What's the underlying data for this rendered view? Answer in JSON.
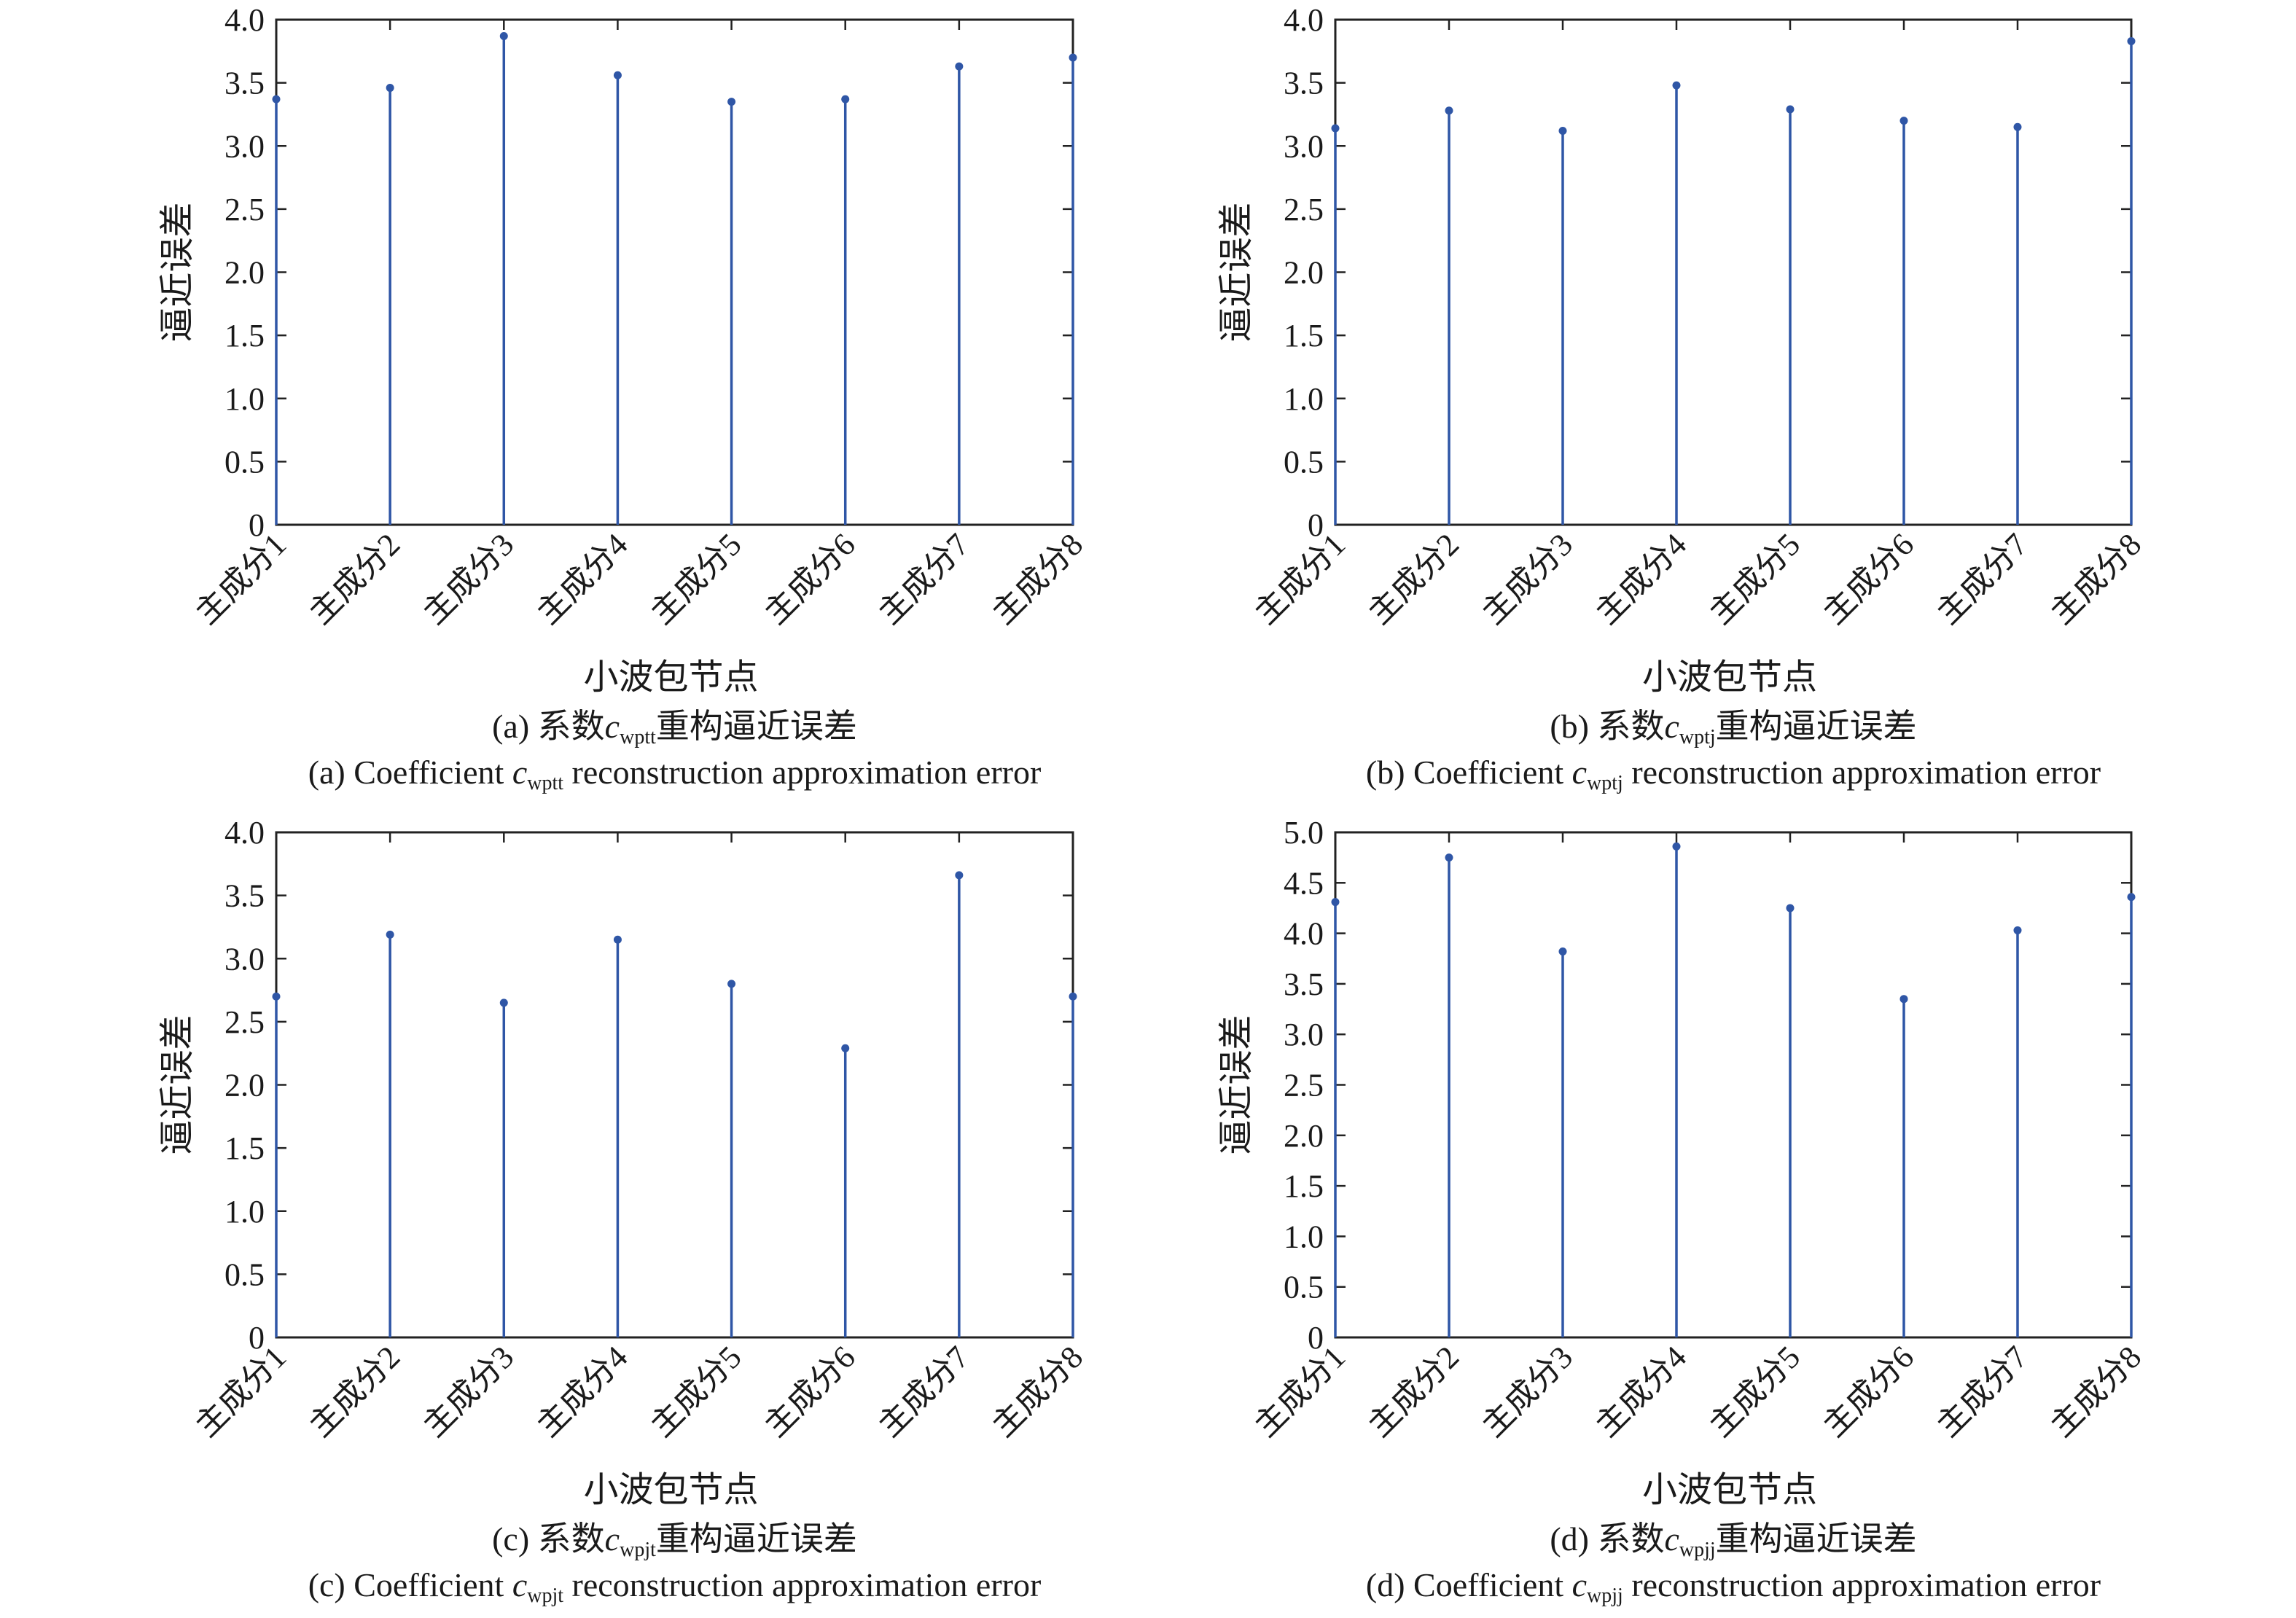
{
  "chart_data": [
    {
      "type": "stem",
      "categories": [
        "主成分1",
        "主成分2",
        "主成分3",
        "主成分4",
        "主成分5",
        "主成分6",
        "主成分7",
        "主成分8"
      ],
      "values": [
        3.37,
        3.46,
        3.87,
        3.56,
        3.35,
        3.37,
        3.63,
        3.7
      ],
      "ylim": [
        0,
        4
      ],
      "yticks": [
        "0",
        "0.5",
        "1.0",
        "1.5",
        "2.0",
        "2.5",
        "3.0",
        "3.5",
        "4.0"
      ],
      "ylabel": "逼近误差",
      "xlabel": "小波包节点",
      "caption_zh": {
        "prefix": "(a) 系数",
        "symbol": "c",
        "subscript": "wptt",
        "suffix": "重构逼近误差"
      },
      "caption_en": {
        "prefix": "(a) Coefficient ",
        "symbol": "c",
        "subscript": "wptt",
        "suffix": " reconstruction approximation error"
      },
      "color": "#2f56a6"
    },
    {
      "type": "stem",
      "categories": [
        "主成分1",
        "主成分2",
        "主成分3",
        "主成分4",
        "主成分5",
        "主成分6",
        "主成分7",
        "主成分8"
      ],
      "values": [
        3.14,
        3.28,
        3.12,
        3.48,
        3.29,
        3.2,
        3.15,
        3.83
      ],
      "ylim": [
        0,
        4
      ],
      "yticks": [
        "0",
        "0.5",
        "1.0",
        "1.5",
        "2.0",
        "2.5",
        "3.0",
        "3.5",
        "4.0"
      ],
      "ylabel": "逼近误差",
      "xlabel": "小波包节点",
      "caption_zh": {
        "prefix": "(b) 系数",
        "symbol": "c",
        "subscript": "wptj",
        "suffix": "重构逼近误差"
      },
      "caption_en": {
        "prefix": "(b) Coefficient ",
        "symbol": "c",
        "subscript": "wptj",
        "suffix": " reconstruction approximation error"
      },
      "color": "#2f56a6"
    },
    {
      "type": "stem",
      "categories": [
        "主成分1",
        "主成分2",
        "主成分3",
        "主成分4",
        "主成分5",
        "主成分6",
        "主成分7",
        "主成分8"
      ],
      "values": [
        2.7,
        3.19,
        2.65,
        3.15,
        2.8,
        2.29,
        3.66,
        2.7
      ],
      "ylim": [
        0,
        4
      ],
      "yticks": [
        "0",
        "0.5",
        "1.0",
        "1.5",
        "2.0",
        "2.5",
        "3.0",
        "3.5",
        "4.0"
      ],
      "ylabel": "逼近误差",
      "xlabel": "小波包节点",
      "caption_zh": {
        "prefix": "(c) 系数",
        "symbol": "c",
        "subscript": "wpjt",
        "suffix": "重构逼近误差"
      },
      "caption_en": {
        "prefix": "(c) Coefficient ",
        "symbol": "c",
        "subscript": "wpjt",
        "suffix": " reconstruction approximation error"
      },
      "color": "#2f56a6"
    },
    {
      "type": "stem",
      "categories": [
        "主成分1",
        "主成分2",
        "主成分3",
        "主成分4",
        "主成分5",
        "主成分6",
        "主成分7",
        "主成分8"
      ],
      "values": [
        4.31,
        4.75,
        3.82,
        4.86,
        4.25,
        3.35,
        4.03,
        4.36
      ],
      "ylim": [
        0,
        5
      ],
      "yticks": [
        "0",
        "0.5",
        "1.0",
        "1.5",
        "2.0",
        "2.5",
        "3.0",
        "3.5",
        "4.0",
        "4.5",
        "5.0"
      ],
      "ylabel": "逼近误差",
      "xlabel": "小波包节点",
      "caption_zh": {
        "prefix": "(d) 系数",
        "symbol": "c",
        "subscript": "wpjj",
        "suffix": "重构逼近误差"
      },
      "caption_en": {
        "prefix": "(d) Coefficient ",
        "symbol": "c",
        "subscript": "wpjj",
        "suffix": " reconstruction approximation error"
      },
      "color": "#2f56a6"
    }
  ]
}
